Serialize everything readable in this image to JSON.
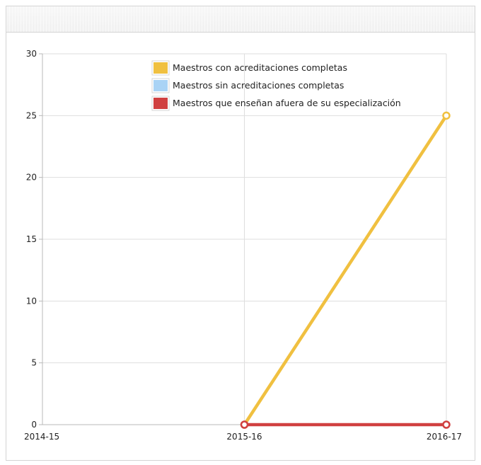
{
  "chart_data": {
    "type": "line",
    "categories": [
      "2014-15",
      "2015-16",
      "2016-17"
    ],
    "ylim": [
      0,
      30
    ],
    "yticks": [
      "0",
      "5",
      "10",
      "15",
      "20",
      "25",
      "30"
    ],
    "grid": true,
    "legend_position": "top-right",
    "series": [
      {
        "name": "Maestros con acreditaciones completas",
        "color": "#f0c040",
        "values": [
          null,
          0,
          25
        ]
      },
      {
        "name": "Maestros sin acreditaciones completas",
        "color": "#a9d3f5",
        "values": [
          null,
          null,
          null
        ]
      },
      {
        "name": "Maestros que enseñan afuera de su especialización",
        "color": "#d04040",
        "values": [
          null,
          0,
          0
        ]
      }
    ]
  }
}
